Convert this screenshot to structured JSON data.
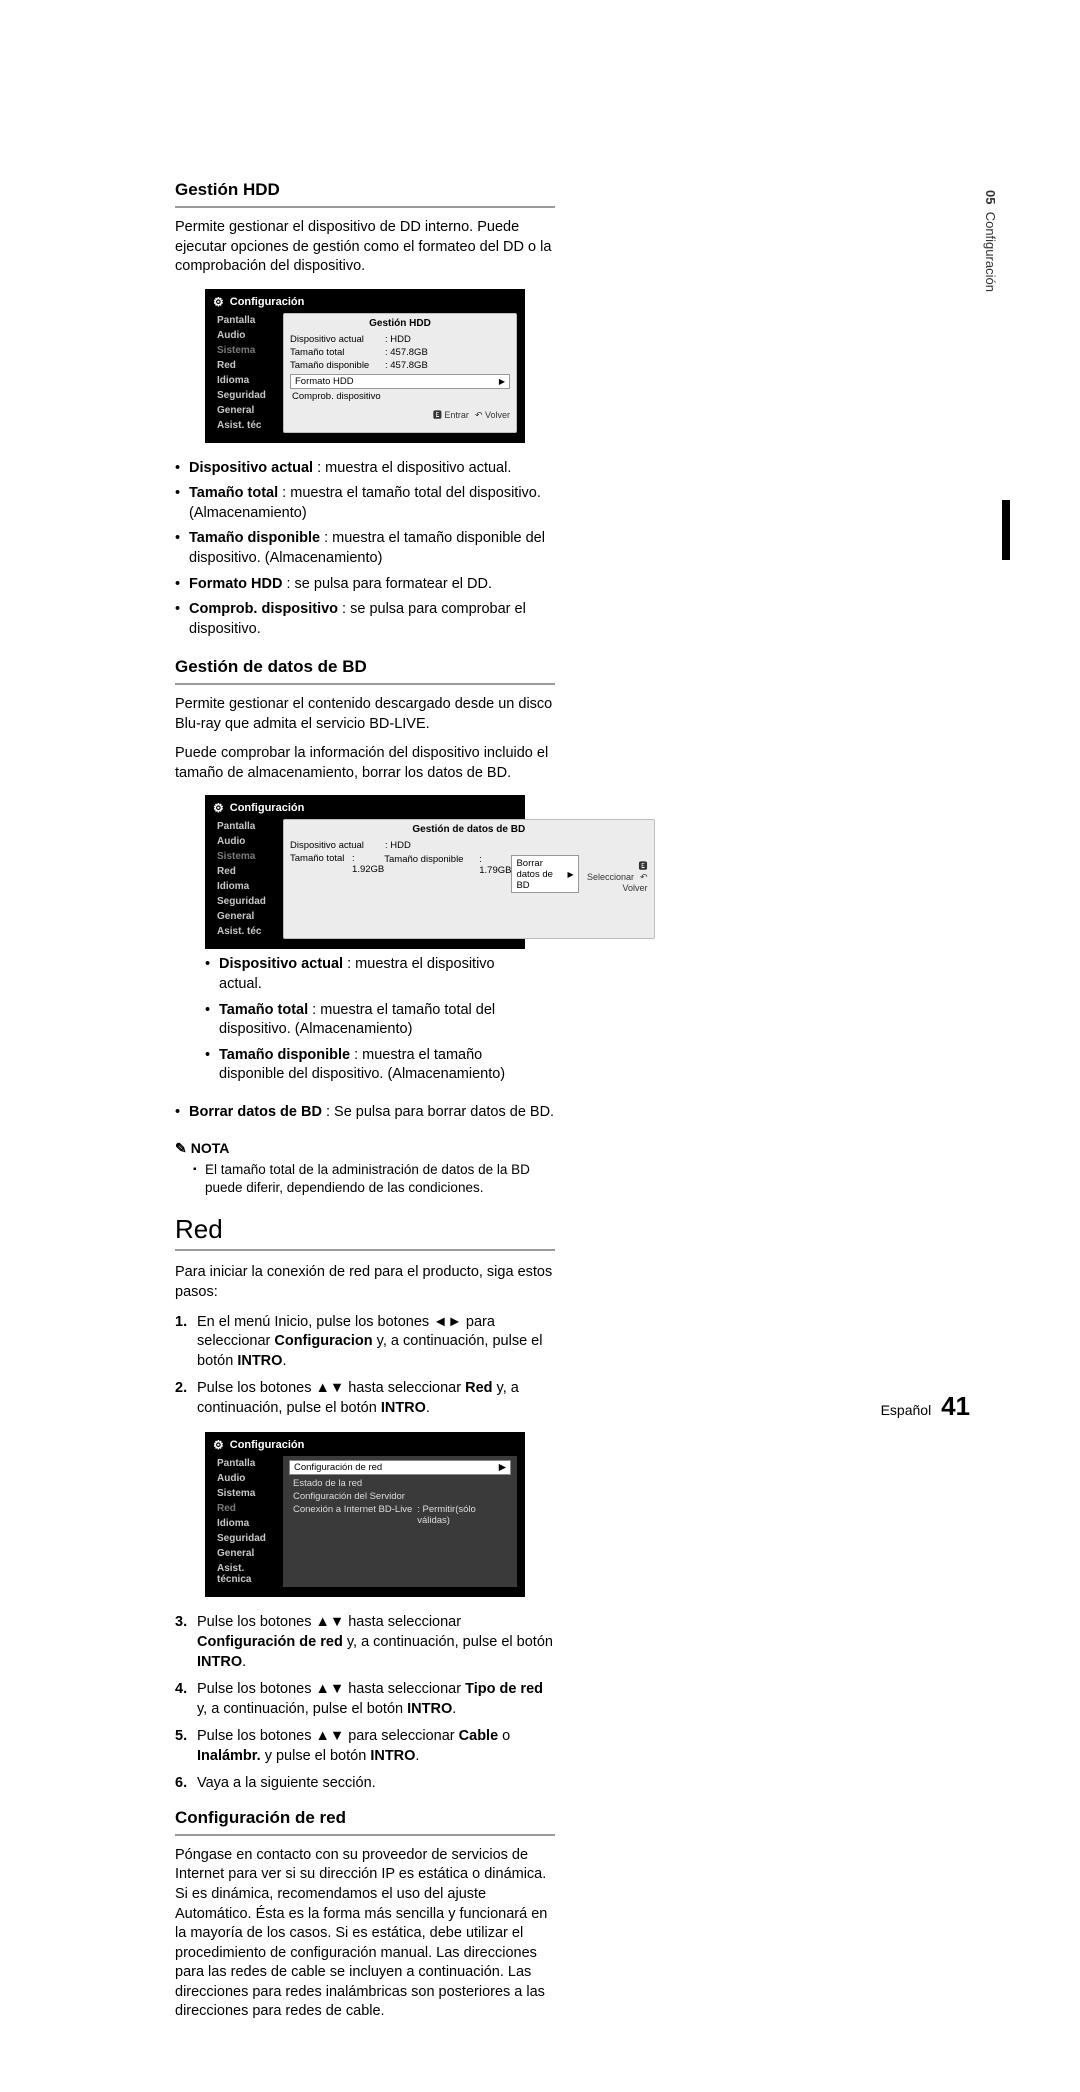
{
  "sideTab": {
    "chapter": "05",
    "title": "Configuración"
  },
  "left": {
    "sec1": {
      "title": "Gestión HDD",
      "para": "Permite gestionar el dispositivo de DD interno. Puede ejecutar opciones de gestión como el formateo del DD o la comprobación del dispositivo.",
      "bullets": [
        {
          "b": "Dispositivo actual",
          "t": " : muestra el dispositivo actual."
        },
        {
          "b": "Tamaño total",
          "t": " : muestra el tamaño total del dispositivo. (Almacenamiento)"
        },
        {
          "b": "Tamaño disponible",
          "t": " : muestra el tamaño disponible del dispositivo. (Almacenamiento)"
        },
        {
          "b": "Formato HDD",
          "t": " : se pulsa para formatear el DD."
        },
        {
          "b": "Comprob. dispositivo",
          "t": " : se pulsa para comprobar el dispositivo."
        }
      ]
    },
    "sec2": {
      "title": "Gestión de datos de BD",
      "para1": "Permite gestionar el contenido descargado desde un disco Blu-ray que admita el servicio BD-LIVE.",
      "para2": "Puede comprobar la información del dispositivo incluido el tamaño de almacenamiento, borrar los datos de BD.",
      "bullets": [
        {
          "b": "Dispositivo actual",
          "t": " : muestra el dispositivo actual."
        },
        {
          "b": "Tamaño total",
          "t": " : muestra el tamaño total del dispositivo. (Almacenamiento)"
        },
        {
          "b": "Tamaño disponible",
          "t": " : muestra el tamaño disponible del dispositivo. (Almacenamiento)"
        }
      ]
    }
  },
  "right": {
    "top": {
      "bullets": [
        {
          "b": "Borrar datos de BD",
          "t": " : Se pulsa para borrar datos de BD."
        }
      ],
      "noteLabel": "NOTA",
      "noteItems": [
        "El tamaño total de la administración de datos de la BD puede diferir, dependiendo de las condiciones."
      ]
    },
    "red": {
      "title": "Red",
      "para": "Para iniciar la conexión de red para el producto, siga estos pasos:",
      "steps12": [
        "En el menú Inicio, pulse los botones ◄► para seleccionar <b>Configuracion</b> y, a continuación, pulse el botón <b>INTRO</b>.",
        "Pulse los botones ▲▼ hasta seleccionar <b>Red</b> y, a continuación, pulse el botón <b>INTRO</b>."
      ],
      "steps36": [
        "Pulse los botones ▲▼ hasta seleccionar <b>Configuración de red</b> y, a continuación, pulse el botón <b>INTRO</b>.",
        "Pulse los botones ▲▼ hasta seleccionar <b>Tipo de red</b> y, a continuación, pulse el botón <b>INTRO</b>.",
        "Pulse los botones ▲▼ para seleccionar <b>Cable</b> o <b>Inalámbr.</b> y pulse el botón <b>INTRO</b>.",
        "Vaya a la siguiente sección."
      ],
      "sub": {
        "title": "Configuración de red",
        "para": "Póngase en contacto con su proveedor de servicios de Internet para ver si su dirección IP es estática o dinámica. Si es dinámica, recomendamos el uso del ajuste Automático. Ésta es la forma más sencilla y funcionará en la mayoría de los casos. Si es estática, debe utilizar el procedimiento de configuración manual. Las direcciones para las redes de cable se incluyen a continuación. Las direcciones para redes inalámbricas son posteriores a las direcciones para redes de cable."
      }
    }
  },
  "osd": {
    "header": "Configuración",
    "menu": [
      "Pantalla",
      "Audio",
      "Sistema",
      "Red",
      "Idioma",
      "Seguridad",
      "General",
      "Asist. téc"
    ],
    "menuFull": [
      "Pantalla",
      "Audio",
      "Sistema",
      "Red",
      "Idioma",
      "Seguridad",
      "General",
      "Asist. técnica"
    ],
    "hdd": {
      "title": "Gestión HDD",
      "rows": [
        {
          "k": "Dispositivo actual",
          "v": ": HDD"
        },
        {
          "k": "Tamaño total",
          "v": ": 457.8GB"
        },
        {
          "k": "Tamaño disponible",
          "v": ": 457.8GB"
        }
      ],
      "btn": "Formato HDD",
      "plain": "Comprob. dispositivo",
      "footer": {
        "a": "🅴 Entrar",
        "b": "↶ Volver"
      }
    },
    "bd": {
      "title": "Gestión de datos de BD",
      "rows": [
        {
          "k": "Dispositivo actual",
          "v": ": HDD"
        },
        {
          "k": "Tamaño total",
          "v": ": 1.92GB"
        },
        {
          "k": "Tamaño disponible",
          "v": ": 1.79GB"
        }
      ],
      "btn": "Borrar datos de BD",
      "footer": {
        "a": "🅴 Seleccionar",
        "b": "↶ Volver"
      }
    },
    "net": {
      "hl": "Configuración de red",
      "rows": [
        "Estado de la red",
        "Configuración del Servidor"
      ],
      "row2": {
        "k": "Conexión a Internet BD-Live",
        "v": ": Permitir(sólo válidas)"
      }
    }
  },
  "footer": {
    "lang": "Español",
    "page": "41"
  }
}
